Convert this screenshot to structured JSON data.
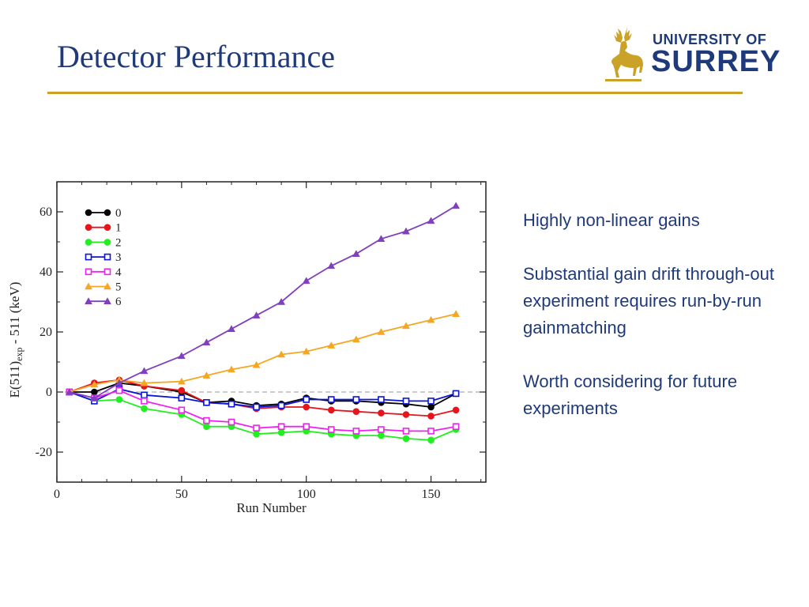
{
  "slide": {
    "title": "Detector Performance",
    "accent_color": "#c9a227",
    "title_color": "#1f3a7a"
  },
  "logo": {
    "line1": "UNIVERSITY OF",
    "line2": "SURREY",
    "icon": "stag-icon"
  },
  "bullets": [
    "Highly non-linear gains",
    "Substantial gain drift through-out experiment requires run-by-run gainmatching",
    "Worth considering for future experiments"
  ],
  "chart_data": {
    "type": "line",
    "xlabel": "Run Number",
    "ylabel_main": "E(511)",
    "ylabel_sub": "exp",
    "ylabel_tail": " - 511 (keV)",
    "xlim": [
      0,
      172
    ],
    "ylim": [
      -30,
      70
    ],
    "xticks": [
      0,
      50,
      100,
      150
    ],
    "yticks": [
      -20,
      0,
      20,
      40,
      60
    ],
    "reference_line_y": 0,
    "legend_placement": "top-left",
    "x": [
      5,
      15,
      25,
      35,
      50,
      60,
      70,
      80,
      90,
      100,
      110,
      120,
      130,
      140,
      150,
      160
    ],
    "series": [
      {
        "name": "0",
        "color": "#000000",
        "marker": "circle-filled",
        "values": [
          0,
          0,
          3,
          2,
          0,
          -3.5,
          -3,
          -4.5,
          -4,
          -2,
          -3,
          -3,
          -3.5,
          -4,
          -5,
          -0.5
        ]
      },
      {
        "name": "1",
        "color": "#e8141c",
        "marker": "circle-filled",
        "values": [
          0,
          3,
          4,
          2,
          0.5,
          -3.5,
          -4,
          -5.5,
          -5,
          -5,
          -6,
          -6.5,
          -7,
          -7.5,
          -8,
          -6
        ]
      },
      {
        "name": "2",
        "color": "#22ee22",
        "marker": "circle-filled",
        "values": [
          0,
          -3,
          -2.5,
          -5.5,
          -7.5,
          -11.5,
          -11.5,
          -14,
          -13.5,
          -13,
          -14,
          -14.5,
          -14.5,
          -15.5,
          -16,
          -12.5
        ]
      },
      {
        "name": "3",
        "color": "#0a14d8",
        "marker": "square-open",
        "values": [
          0,
          -3,
          1,
          -1,
          -2,
          -3.5,
          -4,
          -5,
          -4.5,
          -2.5,
          -2.5,
          -2.5,
          -2.5,
          -3,
          -3,
          -0.5
        ]
      },
      {
        "name": "4",
        "color": "#ee22ee",
        "marker": "square-open",
        "values": [
          0,
          -2,
          0.5,
          -3,
          -6,
          -9.5,
          -10,
          -12,
          -11.5,
          -11.5,
          -12.5,
          -13,
          -12.5,
          -13,
          -13,
          -11.5
        ]
      },
      {
        "name": "5",
        "color": "#f5a623",
        "marker": "triangle-filled",
        "values": [
          0,
          2.5,
          4,
          3,
          3.5,
          5.5,
          7.5,
          9,
          12.5,
          13.5,
          15.5,
          17.5,
          20,
          22,
          24,
          26
        ]
      },
      {
        "name": "6",
        "color": "#7f3fbf",
        "marker": "triangle-filled",
        "values": [
          0,
          -2,
          3,
          7,
          12,
          16.5,
          21,
          25.5,
          30,
          37,
          42,
          46,
          51,
          53.5,
          57,
          62
        ]
      }
    ]
  }
}
